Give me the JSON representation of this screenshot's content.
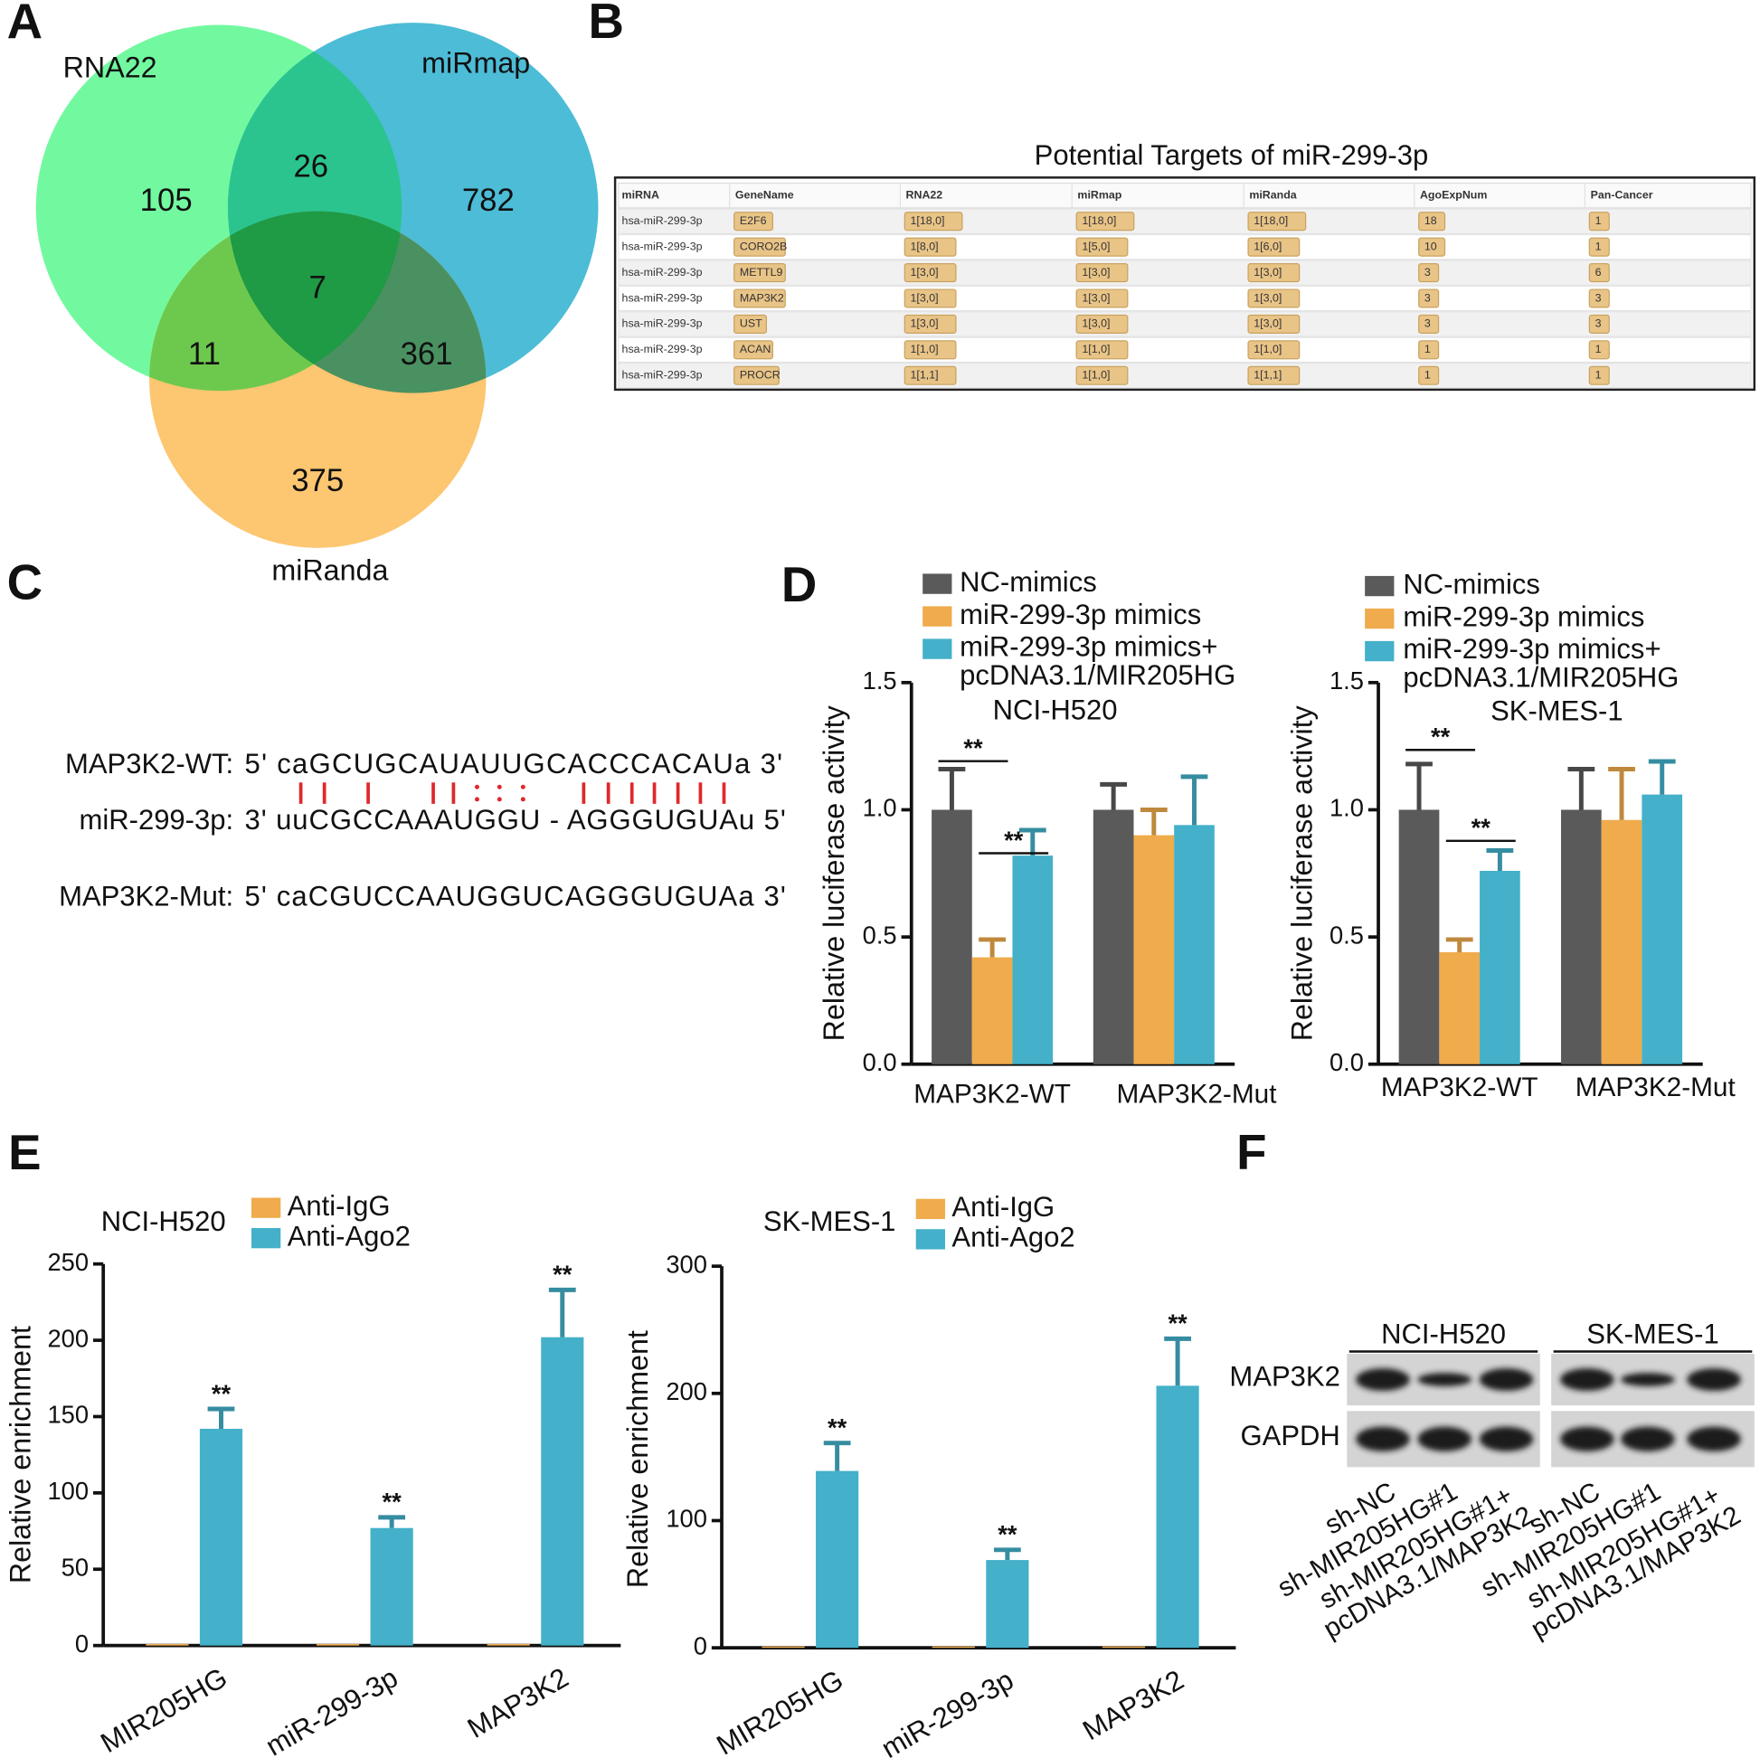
{
  "panels": [
    "A",
    "B",
    "C",
    "D",
    "E",
    "F"
  ],
  "venn": {
    "sets": [
      "RNA22",
      "miRmap",
      "miRanda"
    ],
    "regions": [
      105,
      26,
      782,
      7,
      11,
      361,
      375
    ]
  },
  "table": {
    "title": "Potential Targets of miR-299-3p",
    "columns": [
      "miRNA",
      "GeneName",
      "RNA22",
      "miRmap",
      "miRanda",
      "AgoExpNum",
      "Pan-Cancer"
    ],
    "rows": [
      [
        "hsa-miR-299-3p",
        "E2F6",
        "1[18,0]",
        "1[18,0]",
        "1[18,0]",
        "18",
        "1"
      ],
      [
        "hsa-miR-299-3p",
        "CORO2B",
        "1[8,0]",
        "1[5,0]",
        "1[6,0]",
        "10",
        "1"
      ],
      [
        "hsa-miR-299-3p",
        "METTL9",
        "1[3,0]",
        "1[3,0]",
        "1[3,0]",
        "3",
        "6"
      ],
      [
        "hsa-miR-299-3p",
        "MAP3K2",
        "1[3,0]",
        "1[3,0]",
        "1[3,0]",
        "3",
        "3"
      ],
      [
        "hsa-miR-299-3p",
        "UST",
        "1[3,0]",
        "1[3,0]",
        "1[3,0]",
        "3",
        "3"
      ],
      [
        "hsa-miR-299-3p",
        "ACAN",
        "1[1,0]",
        "1[1,0]",
        "1[1,0]",
        "1",
        "1"
      ],
      [
        "hsa-miR-299-3p",
        "PROCR",
        "1[1,1]",
        "1[1,0]",
        "1[1,1]",
        "1",
        "1"
      ]
    ]
  },
  "alignment": {
    "rows": [
      {
        "name": "MAP3K2-WT:",
        "sequence": "5' caGCUGCAUAUUGCACCCACAUa 3'"
      },
      {
        "name": "miR-299-3p:",
        "sequence": "3' uuCGCCAAAUGGU - AGGGUGUAu 5'"
      },
      {
        "name": "MAP3K2-Mut:",
        "sequence": "5' caCGUCCAAUGGUCAGGGUGUAa 3'"
      }
    ]
  },
  "chart_data": [
    {
      "type": "bar",
      "subtitle": "NCI-H520",
      "ylabel": "Relative luciferase activity",
      "categories": [
        "MAP3K2-WT",
        "MAP3K2-Mut"
      ],
      "ylim": [
        0,
        1.5
      ],
      "yticks": [
        {
          "value": 0,
          "label": "0.0"
        },
        0.5,
        {
          "value": 1,
          "label": "1.0"
        },
        1.5
      ],
      "series": [
        {
          "name": "NC-mimics",
          "color": "#5a5a5a",
          "values": [
            1.0,
            1.0
          ],
          "errors": [
            0.16,
            0.1
          ]
        },
        {
          "name": "miR-299-3p mimics",
          "color": "#efab4c",
          "values": [
            0.42,
            0.9
          ],
          "errors": [
            0.07,
            0.1
          ]
        },
        {
          "name": "miR-299-3p mimics+ pcDNA3.1/MIR205HG",
          "color": "#44b0c9",
          "values": [
            0.82,
            0.94
          ],
          "errors": [
            0.1,
            0.19
          ]
        }
      ],
      "annotations": [
        "**",
        "**"
      ]
    },
    {
      "type": "bar",
      "subtitle": "SK-MES-1",
      "ylabel": "Relative luciferase activity",
      "categories": [
        "MAP3K2-WT",
        "MAP3K2-Mut"
      ],
      "ylim": [
        0,
        1.5
      ],
      "yticks": [
        {
          "value": 0,
          "label": "0.0"
        },
        0.5,
        {
          "value": 1,
          "label": "1.0"
        },
        1.5
      ],
      "series": [
        {
          "name": "NC-mimics",
          "color": "#5a5a5a",
          "values": [
            1.0,
            1.0
          ],
          "errors": [
            0.18,
            0.16
          ]
        },
        {
          "name": "miR-299-3p mimics",
          "color": "#efab4c",
          "values": [
            0.44,
            0.96
          ],
          "errors": [
            0.05,
            0.2
          ]
        },
        {
          "name": "miR-299-3p mimics+ pcDNA3.1/MIR205HG",
          "color": "#44b0c9",
          "values": [
            0.76,
            1.06
          ],
          "errors": [
            0.08,
            0.13
          ]
        }
      ],
      "annotations": [
        "**",
        "**"
      ]
    },
    {
      "type": "bar",
      "title": "NCI-H520",
      "ylabel": "Relative enrichment",
      "categories": [
        "MIR205HG",
        "miR-299-3p",
        "MAP3K2"
      ],
      "ylim": [
        0,
        250
      ],
      "yticks": [
        0,
        50,
        100,
        150,
        200,
        250
      ],
      "series": [
        {
          "name": "Anti-IgG",
          "color": "#efab4c",
          "values": [
            1,
            1,
            1
          ]
        },
        {
          "name": "Anti-Ago2",
          "color": "#44b0c9",
          "values": [
            142,
            77,
            202
          ],
          "errors": [
            13,
            7,
            31
          ]
        }
      ],
      "annotations": [
        "**",
        "**",
        "**"
      ]
    },
    {
      "type": "bar",
      "title": "SK-MES-1",
      "ylabel": "Relative enrichment",
      "categories": [
        "MIR205HG",
        "miR-299-3p",
        "MAP3K2"
      ],
      "ylim": [
        0,
        300
      ],
      "yticks": [
        0,
        100,
        200,
        300
      ],
      "series": [
        {
          "name": "Anti-IgG",
          "color": "#efab4c",
          "values": [
            1,
            1,
            1
          ]
        },
        {
          "name": "Anti-Ago2",
          "color": "#44b0c9",
          "values": [
            139,
            69,
            206
          ],
          "errors": [
            22,
            8,
            37
          ]
        }
      ],
      "annotations": [
        "**",
        "**",
        "**"
      ]
    }
  ],
  "blot": {
    "cell_lines": [
      "NCI-H520",
      "SK-MES-1"
    ],
    "proteins": [
      "MAP3K2",
      "GAPDH"
    ],
    "lanes": [
      "sh-NC",
      "sh-MIR205HG#1",
      "sh-MIR205HG#1+ pcDNA3.1/MAP3K2"
    ]
  }
}
